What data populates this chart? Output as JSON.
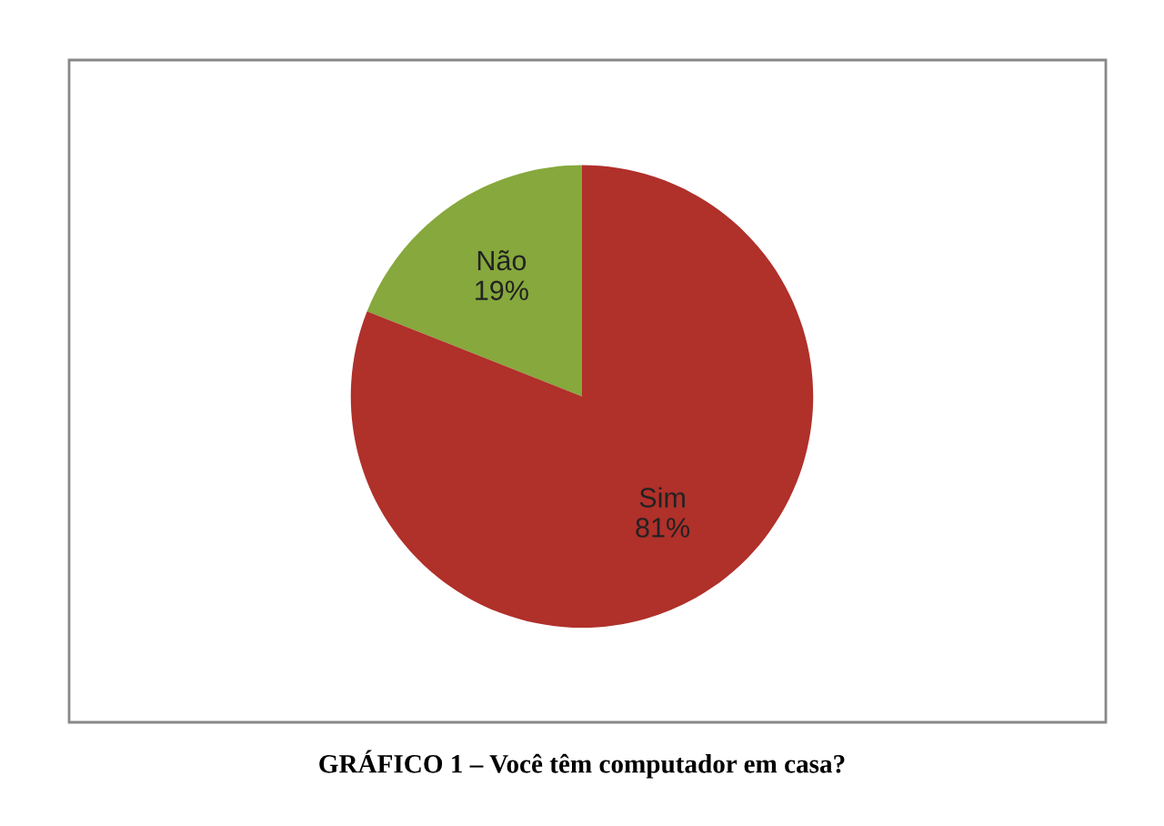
{
  "chart_data": {
    "type": "pie",
    "categories": [
      "Não",
      "Sim"
    ],
    "values": [
      19,
      81
    ],
    "colors": [
      "#86a83c",
      "#b0302a"
    ],
    "value_labels": [
      "19%",
      "81%"
    ],
    "annotations": [
      "GRÁFICO 1 – Você têm computador em casa?"
    ],
    "legend": false
  }
}
